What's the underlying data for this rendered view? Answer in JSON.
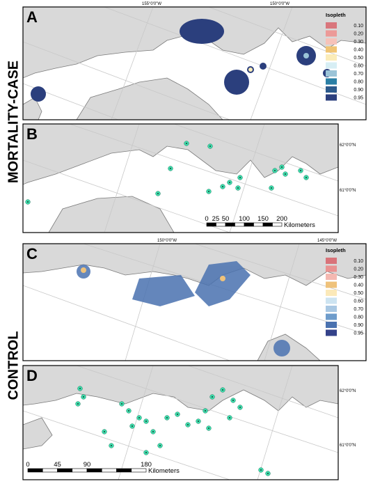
{
  "side_labels": [
    "MORTALITY-CASE",
    "CONTROL"
  ],
  "panels": [
    {
      "letter": "A",
      "lon_labels": [
        "155°0'0\"W",
        "150°0'0\"W"
      ]
    },
    {
      "letter": "B",
      "lat_labels": [
        "62°0'0\"N",
        "61°0'0\"N"
      ],
      "scale_bar": {
        "ticks": [
          "0",
          "25",
          "50",
          "100",
          "150",
          "200"
        ],
        "unit": "Kilometers"
      }
    },
    {
      "letter": "C",
      "lon_labels": [
        "150°0'0\"W",
        "145°0'0\"W"
      ]
    },
    {
      "letter": "D",
      "lat_labels": [
        "62°0'0\"N",
        "61°0'0\"N"
      ],
      "scale_bar": {
        "ticks": [
          "0",
          "45",
          "90",
          "180"
        ],
        "unit": "Kilometers"
      }
    }
  ],
  "legends": [
    {
      "title": "Isopleth",
      "items": [
        {
          "label": "0.10",
          "color": "#d9767c"
        },
        {
          "label": "0.20",
          "color": "#ec9a98"
        },
        {
          "label": "0.30",
          "color": "#f6c2b9"
        },
        {
          "label": "0.40",
          "color": "#f0c474"
        },
        {
          "label": "0.50",
          "color": "#fbecb8"
        },
        {
          "label": "0.60",
          "color": "#d7eef4"
        },
        {
          "label": "0.70",
          "color": "#9bc4d8"
        },
        {
          "label": "0.80",
          "color": "#2a7fa5"
        },
        {
          "label": "0.90",
          "color": "#2c5a8c"
        },
        {
          "label": "0.95",
          "color": "#2b3f7d"
        }
      ]
    },
    {
      "title": "Isopleth",
      "items": [
        {
          "label": "0.10",
          "color": "#d9737a"
        },
        {
          "label": "0.20",
          "color": "#e99291"
        },
        {
          "label": "0.30",
          "color": "#f4b8b1"
        },
        {
          "label": "0.40",
          "color": "#efc27a"
        },
        {
          "label": "0.50",
          "color": "#fbe9b9"
        },
        {
          "label": "0.60",
          "color": "#cde4f1"
        },
        {
          "label": "0.70",
          "color": "#a9c8e3"
        },
        {
          "label": "0.80",
          "color": "#6e9ccb"
        },
        {
          "label": "0.90",
          "color": "#4a72b0"
        },
        {
          "label": "0.95",
          "color": "#34428a"
        }
      ]
    }
  ]
}
